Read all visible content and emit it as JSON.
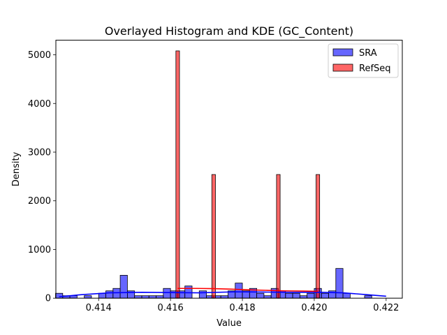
{
  "chart_data": {
    "type": "bar",
    "title": "Overlayed Histogram and KDE (GC_Content)",
    "xlabel": "Value",
    "ylabel": "Density",
    "xlim": [
      0.41281,
      0.42245
    ],
    "ylim": [
      0,
      5300
    ],
    "xticks": [
      0.414,
      0.416,
      0.418,
      0.42,
      0.422
    ],
    "xtick_labels": [
      "0.414",
      "0.416",
      "0.418",
      "0.420",
      "0.422"
    ],
    "yticks": [
      0,
      1000,
      2000,
      3000,
      4000,
      5000
    ],
    "ytick_labels": [
      "0",
      "1000",
      "2000",
      "3000",
      "4000",
      "5000"
    ],
    "grid": false,
    "legend_position": "top-right",
    "series": [
      {
        "name": "SRA",
        "kind": "histogram",
        "color": "#0000ff",
        "bin_width": 0.0002,
        "bins": [
          {
            "x": 0.4129,
            "y": 100
          },
          {
            "x": 0.4131,
            "y": 50
          },
          {
            "x": 0.4133,
            "y": 50
          },
          {
            "x": 0.4137,
            "y": 50
          },
          {
            "x": 0.4141,
            "y": 100
          },
          {
            "x": 0.4143,
            "y": 150
          },
          {
            "x": 0.4145,
            "y": 200
          },
          {
            "x": 0.4147,
            "y": 470
          },
          {
            "x": 0.4149,
            "y": 150
          },
          {
            "x": 0.4151,
            "y": 50
          },
          {
            "x": 0.4153,
            "y": 50
          },
          {
            "x": 0.4155,
            "y": 50
          },
          {
            "x": 0.4157,
            "y": 50
          },
          {
            "x": 0.4159,
            "y": 200
          },
          {
            "x": 0.4161,
            "y": 150
          },
          {
            "x": 0.4163,
            "y": 150
          },
          {
            "x": 0.4165,
            "y": 250
          },
          {
            "x": 0.4169,
            "y": 150
          },
          {
            "x": 0.4171,
            "y": 50
          },
          {
            "x": 0.4173,
            "y": 50
          },
          {
            "x": 0.4175,
            "y": 50
          },
          {
            "x": 0.4177,
            "y": 150
          },
          {
            "x": 0.4179,
            "y": 310
          },
          {
            "x": 0.4181,
            "y": 150
          },
          {
            "x": 0.4183,
            "y": 200
          },
          {
            "x": 0.4185,
            "y": 100
          },
          {
            "x": 0.4187,
            "y": 50
          },
          {
            "x": 0.4189,
            "y": 200
          },
          {
            "x": 0.4191,
            "y": 150
          },
          {
            "x": 0.4193,
            "y": 100
          },
          {
            "x": 0.4195,
            "y": 100
          },
          {
            "x": 0.4197,
            "y": 50
          },
          {
            "x": 0.4199,
            "y": 100
          },
          {
            "x": 0.4201,
            "y": 200
          },
          {
            "x": 0.4203,
            "y": 100
          },
          {
            "x": 0.4205,
            "y": 150
          },
          {
            "x": 0.4207,
            "y": 610
          },
          {
            "x": 0.4209,
            "y": 100
          },
          {
            "x": 0.4215,
            "y": 50
          }
        ],
        "kde": {
          "x": [
            0.4129,
            0.4135,
            0.4143,
            0.4152,
            0.416,
            0.4168,
            0.4178,
            0.4186,
            0.4194,
            0.4202,
            0.4208,
            0.4214,
            0.422
          ],
          "y": [
            30,
            70,
            110,
            120,
            115,
            110,
            130,
            125,
            120,
            120,
            110,
            75,
            40
          ]
        }
      },
      {
        "name": "RefSeq",
        "kind": "histogram",
        "color": "#ff0000",
        "bin_width": 0.0001,
        "bins": [
          {
            "x": 0.4162,
            "y": 5080
          },
          {
            "x": 0.4172,
            "y": 2540
          },
          {
            "x": 0.419,
            "y": 2540
          },
          {
            "x": 0.4201,
            "y": 2540
          }
        ],
        "kde": {
          "x": [
            0.4162,
            0.4167,
            0.4172,
            0.4177,
            0.4182,
            0.4187,
            0.4192,
            0.4197,
            0.4201
          ],
          "y": [
            200,
            200,
            195,
            185,
            170,
            160,
            150,
            145,
            140
          ]
        }
      }
    ]
  }
}
